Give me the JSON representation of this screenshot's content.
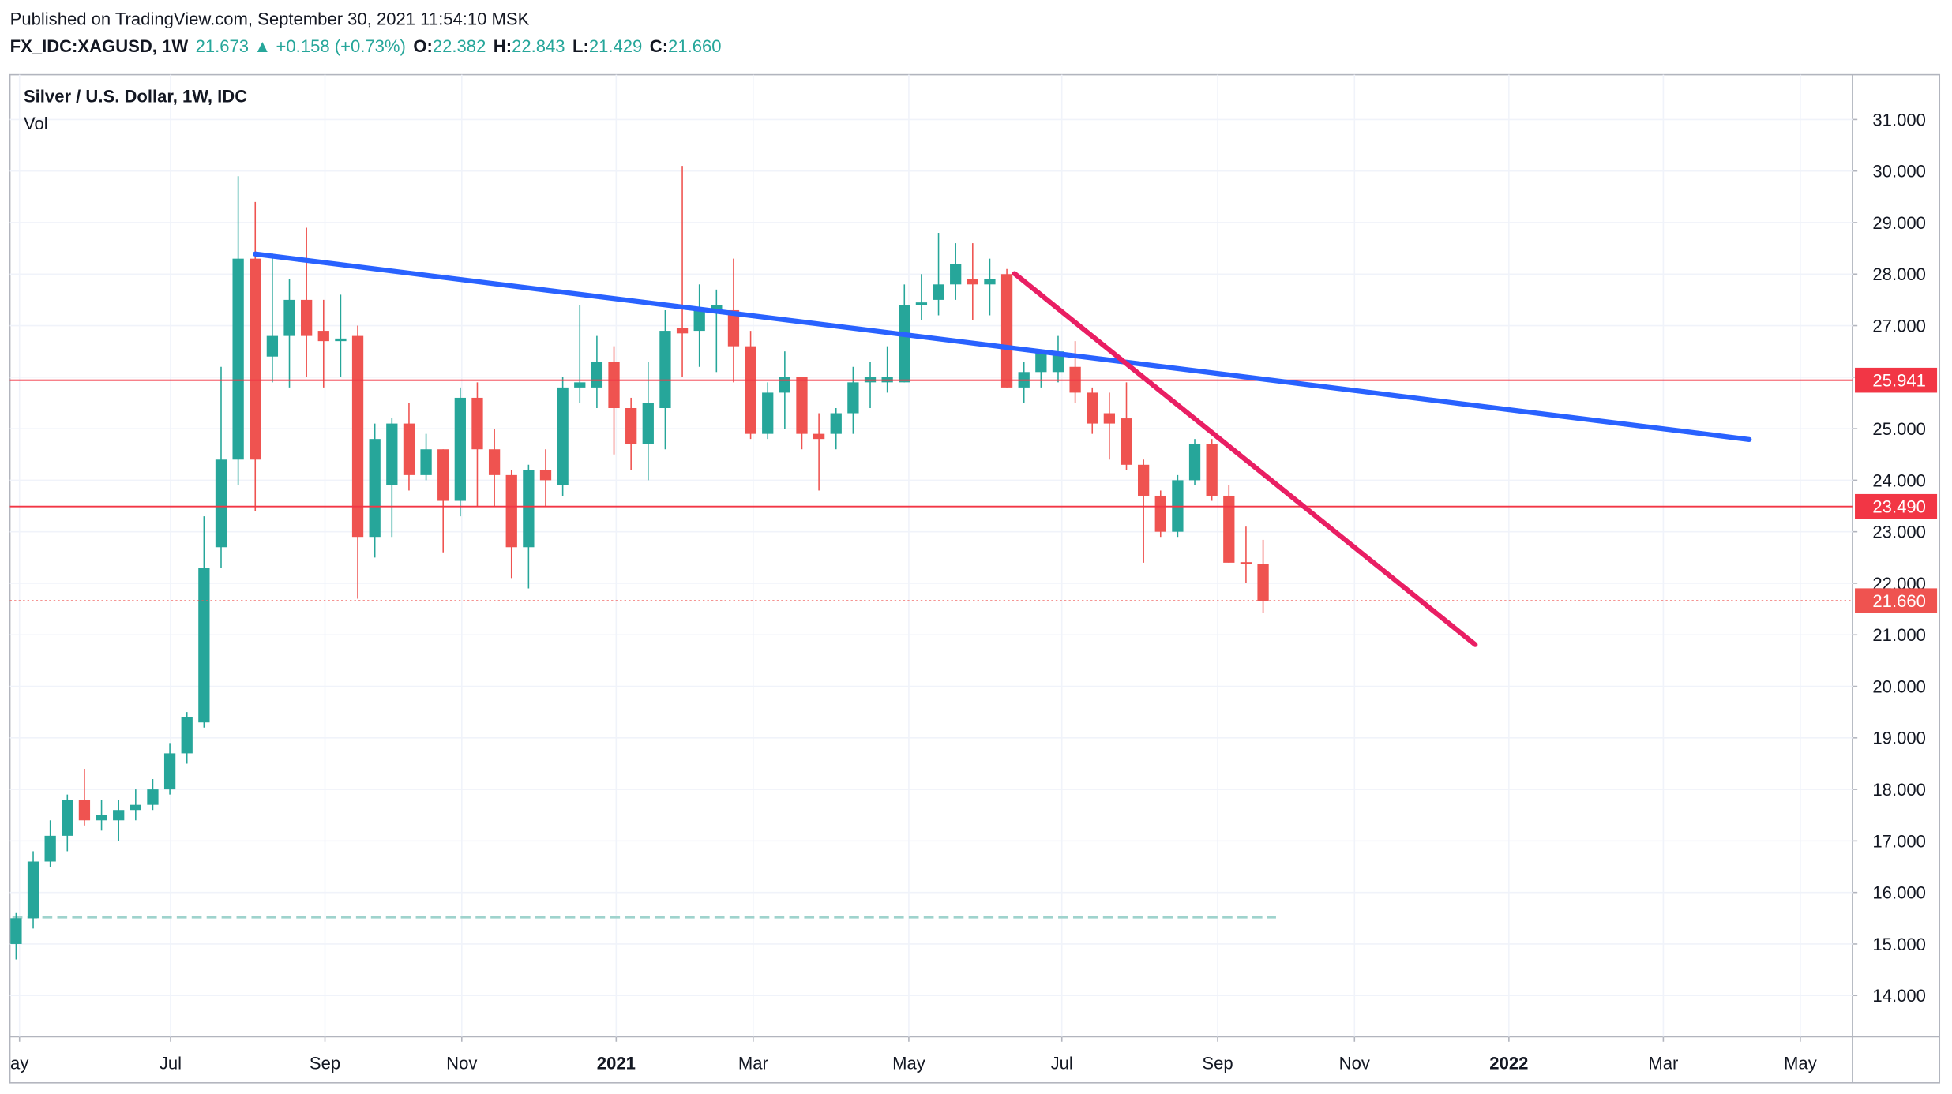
{
  "header": {
    "published": "Published on TradingView.com, September 30, 2021 11:54:10 MSK",
    "symbol": "FX_IDC:XAGUSD, 1W",
    "last": "21.673",
    "arrow": "▲",
    "change": "+0.158 (+0.73%)",
    "open_label": "O:",
    "open": "22.382",
    "high_label": "H:",
    "high": "22.843",
    "low_label": "L:",
    "low": "21.429",
    "close_label": "C:",
    "close": "21.660"
  },
  "chart_data": {
    "type": "candlestick",
    "title": "Silver / U.S. Dollar, 1W, IDC",
    "subtitle": "Vol",
    "x": [
      0,
      1,
      2,
      3,
      4,
      5,
      6,
      7,
      8,
      9,
      10,
      11,
      12,
      13,
      14,
      15,
      16,
      17,
      18,
      19,
      20,
      21,
      22,
      23,
      24,
      25,
      26,
      27,
      28,
      29,
      30,
      31,
      32,
      33,
      34,
      35,
      36,
      37,
      38,
      39,
      40,
      41,
      42,
      43,
      44,
      45,
      46,
      47,
      48,
      49,
      50,
      51,
      52,
      53,
      54,
      55,
      56,
      57,
      58,
      59,
      60,
      61,
      62,
      63,
      64,
      65,
      66,
      67,
      68,
      69,
      70,
      71,
      72,
      73
    ],
    "open": [
      15.0,
      15.5,
      16.6,
      17.1,
      17.8,
      17.4,
      17.4,
      17.6,
      17.7,
      18.0,
      18.7,
      19.3,
      22.7,
      24.4,
      28.3,
      26.4,
      26.8,
      27.5,
      26.9,
      26.7,
      26.8,
      22.9,
      23.9,
      25.1,
      24.1,
      24.6,
      23.6,
      25.6,
      24.6,
      24.1,
      22.7,
      24.2,
      23.9,
      25.8,
      25.8,
      26.3,
      25.4,
      24.7,
      25.4,
      26.95,
      26.9,
      27.25,
      27.3,
      26.6,
      24.9,
      25.7,
      26.0,
      24.9,
      24.9,
      25.3,
      25.9,
      25.9,
      25.9,
      27.4,
      27.5,
      27.8,
      27.9,
      27.8,
      28.0,
      25.8,
      26.1,
      26.1,
      26.2,
      25.7,
      25.3,
      25.2,
      24.3,
      23.7,
      23.0,
      24.0,
      24.7,
      23.7,
      22.41,
      22.382
    ],
    "high": [
      15.6,
      16.8,
      17.4,
      17.9,
      18.4,
      17.8,
      17.8,
      18.0,
      18.2,
      18.9,
      19.5,
      23.3,
      26.2,
      29.9,
      29.4,
      28.4,
      27.9,
      28.9,
      27.5,
      27.6,
      27.0,
      25.1,
      25.2,
      25.5,
      24.9,
      24.6,
      25.8,
      25.9,
      25.0,
      24.2,
      24.3,
      24.6,
      26.0,
      27.4,
      26.8,
      26.6,
      25.6,
      26.3,
      27.3,
      30.1,
      27.8,
      27.7,
      28.3,
      26.9,
      25.9,
      26.5,
      26.0,
      25.3,
      25.4,
      26.2,
      26.3,
      26.6,
      27.8,
      28.0,
      28.8,
      28.6,
      28.6,
      28.3,
      28.1,
      26.3,
      26.5,
      26.8,
      26.7,
      25.8,
      25.7,
      25.9,
      24.4,
      23.8,
      24.1,
      24.8,
      24.8,
      23.9,
      23.1,
      22.843
    ],
    "low": [
      14.7,
      15.3,
      16.5,
      16.8,
      17.3,
      17.2,
      17.0,
      17.4,
      17.6,
      17.9,
      18.5,
      19.2,
      22.3,
      23.9,
      23.4,
      25.9,
      25.8,
      26.0,
      25.8,
      26.0,
      21.7,
      22.5,
      22.9,
      23.8,
      24.0,
      22.6,
      23.3,
      23.5,
      23.5,
      22.1,
      21.9,
      23.5,
      23.7,
      25.5,
      25.4,
      24.5,
      24.2,
      24.0,
      24.6,
      26.0,
      26.2,
      26.1,
      25.9,
      24.8,
      24.8,
      25.0,
      24.6,
      23.8,
      24.6,
      24.9,
      25.4,
      25.7,
      25.9,
      27.1,
      27.2,
      27.5,
      27.1,
      27.2,
      25.8,
      25.5,
      25.8,
      25.9,
      25.5,
      24.9,
      24.4,
      24.2,
      22.4,
      22.9,
      22.9,
      23.9,
      23.6,
      22.4,
      22.0,
      21.429
    ],
    "close": [
      15.5,
      16.6,
      17.1,
      17.8,
      17.4,
      17.5,
      17.6,
      17.7,
      18.0,
      18.7,
      19.4,
      22.3,
      24.4,
      28.3,
      24.4,
      26.8,
      27.5,
      26.8,
      26.7,
      26.75,
      22.9,
      24.8,
      25.1,
      24.1,
      24.6,
      23.6,
      25.6,
      24.6,
      24.1,
      22.7,
      24.2,
      24.0,
      25.8,
      25.9,
      26.3,
      25.4,
      24.7,
      25.5,
      26.9,
      26.85,
      27.3,
      27.4,
      26.6,
      24.9,
      25.7,
      26.0,
      24.9,
      24.8,
      25.3,
      25.9,
      26.0,
      26.0,
      27.4,
      27.45,
      27.8,
      28.2,
      27.8,
      27.9,
      25.8,
      26.1,
      26.5,
      26.5,
      25.7,
      25.1,
      25.1,
      24.3,
      23.7,
      23.0,
      24.0,
      24.7,
      23.7,
      22.4,
      22.38,
      21.66
    ],
    "up_color": "#26a69a",
    "down_color": "#ef5350",
    "xlim": [
      -0.36,
      107.5
    ],
    "ylim": [
      13.2,
      31.87
    ],
    "xticks": [
      {
        "value": 0.2,
        "label": "ay"
      },
      {
        "value": 9.04,
        "label": "Jul"
      },
      {
        "value": 18.08,
        "label": "Sep"
      },
      {
        "value": 26.09,
        "label": "Nov"
      },
      {
        "value": 35.13,
        "label": "2021"
      },
      {
        "value": 43.15,
        "label": "Mar"
      },
      {
        "value": 52.26,
        "label": "May"
      },
      {
        "value": 61.22,
        "label": "Jul"
      },
      {
        "value": 70.34,
        "label": "Sep"
      },
      {
        "value": 78.35,
        "label": "Nov"
      },
      {
        "value": 87.39,
        "label": "2022"
      },
      {
        "value": 96.43,
        "label": "Mar"
      },
      {
        "value": 104.45,
        "label": "May"
      }
    ],
    "yticks": [
      {
        "value": 14,
        "label": "14.000"
      },
      {
        "value": 15,
        "label": "15.000"
      },
      {
        "value": 16,
        "label": "16.000"
      },
      {
        "value": 17,
        "label": "17.000"
      },
      {
        "value": 18,
        "label": "18.000"
      },
      {
        "value": 19,
        "label": "19.000"
      },
      {
        "value": 20,
        "label": "20.000"
      },
      {
        "value": 21,
        "label": "21.000"
      },
      {
        "value": 22,
        "label": "22.000"
      },
      {
        "value": 23,
        "label": "23.000"
      },
      {
        "value": 24,
        "label": "24.000"
      },
      {
        "value": 25,
        "label": "25.000"
      },
      {
        "value": 26,
        "label": "26.000"
      },
      {
        "value": 27,
        "label": "27.000"
      },
      {
        "value": 28,
        "label": "28.000"
      },
      {
        "value": 29,
        "label": "29.000"
      },
      {
        "value": 30,
        "label": "30.000"
      },
      {
        "value": 31,
        "label": "31.000"
      }
    ],
    "grid": true,
    "levels": [
      {
        "value": 25.941,
        "label": "25.941",
        "color": "#f23645",
        "style": "solid"
      },
      {
        "value": 23.49,
        "label": "23.490",
        "color": "#f23645",
        "style": "solid"
      },
      {
        "value": 21.66,
        "label": "21.660",
        "color": "#ef5350",
        "style": "dotted"
      }
    ],
    "trend_lines": [
      {
        "color": "#2962ff",
        "x": [
          14.0,
          101.46
        ],
        "y": [
          28.39,
          24.79
        ]
      },
      {
        "color": "#e91e63",
        "x": [
          58.45,
          85.42
        ],
        "y": [
          28.01,
          20.81
        ]
      }
    ]
  }
}
